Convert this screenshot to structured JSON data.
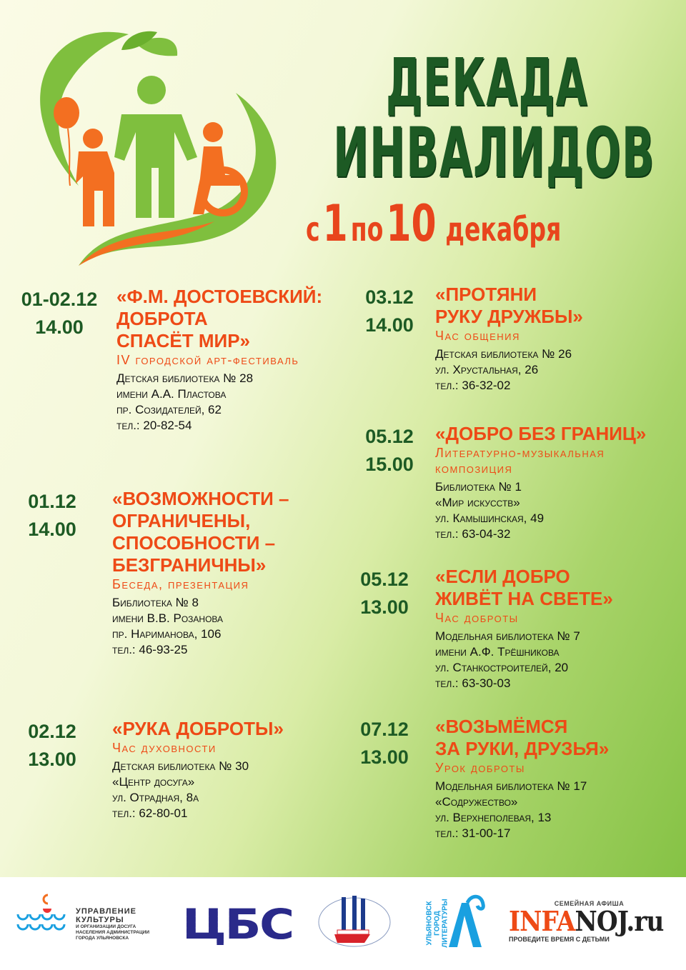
{
  "header": {
    "title_line1": "ДЕКАДА",
    "title_line2": "ИНВАЛИДОВ",
    "dates": [
      "с",
      "1",
      "по",
      "10",
      "декабря"
    ]
  },
  "events_left": [
    {
      "date": "01-02.12",
      "time": "14.00",
      "title": "«Ф.М. ДОСТОЕВСКИЙ:\nДОБРОТА\nСПАСЁТ МИР»",
      "subtitle": "IV городской арт-фестиваль",
      "address": "Детская библиотека № 28\nимени А.А. Пластова\nпр. Созидателей, 62\nтел.: 20-82-54"
    },
    {
      "date": "01.12",
      "time": "14.00",
      "title": "«ВОЗМОЖНОСТИ –\nОГРАНИЧЕНЫ,\nСПОСОБНОСТИ –\nБЕЗГРАНИЧНЫ»",
      "subtitle": "Беседа, презентация",
      "address": "Библиотека № 8\nимени В.В. Розанова\nпр. Нариманова, 106\nтел.: 46-93-25"
    },
    {
      "date": "02.12",
      "time": "13.00",
      "title": "«РУКА ДОБРОТЫ»",
      "subtitle": "Час духовности",
      "address": "Детская библиотека № 30\n«Центр досуга»\nул. Отрадная, 8а\nтел.: 62-80-01"
    }
  ],
  "events_right": [
    {
      "date": "03.12",
      "time": "14.00",
      "title": "«ПРОТЯНИ\nРУКУ ДРУЖБЫ»",
      "subtitle": "Час общения",
      "address": "Детская библиотека № 26\nул. Хрустальная, 26\nтел.: 36-32-02"
    },
    {
      "date": "05.12",
      "time": "15.00",
      "title": "«ДОБРО БЕЗ ГРАНИЦ»",
      "subtitle": "Литературно-музыкальная\nкомпозиция",
      "address": "Библиотека № 1\n«Мир искусств»\nул. Камышинская, 49\nтел.: 63-04-32"
    },
    {
      "date": "05.12",
      "time": "13.00",
      "title": "«ЕСЛИ ДОБРО\nЖИВЁТ НА СВЕТЕ»",
      "subtitle": "Час доброты",
      "address": "Модельная библиотека № 7\nимени А.Ф. Трёшникова\nул. Станкостроителей, 20\nтел.: 63-30-03"
    },
    {
      "date": "07.12",
      "time": "13.00",
      "title": "«ВОЗЬМЁМСЯ\nЗА РУКИ, ДРУЗЬЯ»",
      "subtitle": "Урок доброты",
      "address": "Модельная библиотека № 17\n«Содружество»\nул. Верхнеполевая, 13\nтел.: 31-00-17"
    }
  ],
  "footer": {
    "culture": {
      "line1": "УПРАВЛЕНИЕ",
      "line2": "КУЛЬТУРЫ",
      "line3": "И ОРГАНИЗАЦИИ ДОСУГА",
      "line4": "НАСЕЛЕНИЯ АДМИНИСТРАЦИИ",
      "line5": "ГОРОДА УЛЬЯНОВСКА"
    },
    "cbs": "ЦБС",
    "infanoj": {
      "top": "СЕМЕЙНАЯ АФИША",
      "brand_a": "INFA",
      "brand_b": "NOJ.ru",
      "bottom": "ПРОВЕДИТЕ ВРЕМЯ С ДЕТЬМИ"
    },
    "ulyanovsk": "УЛЬЯНОВСК ГОРОД ЛИТЕРАТУРЫ"
  },
  "colors": {
    "title_green": "#1d5a24",
    "accent_orange": "#ee4a16"
  }
}
